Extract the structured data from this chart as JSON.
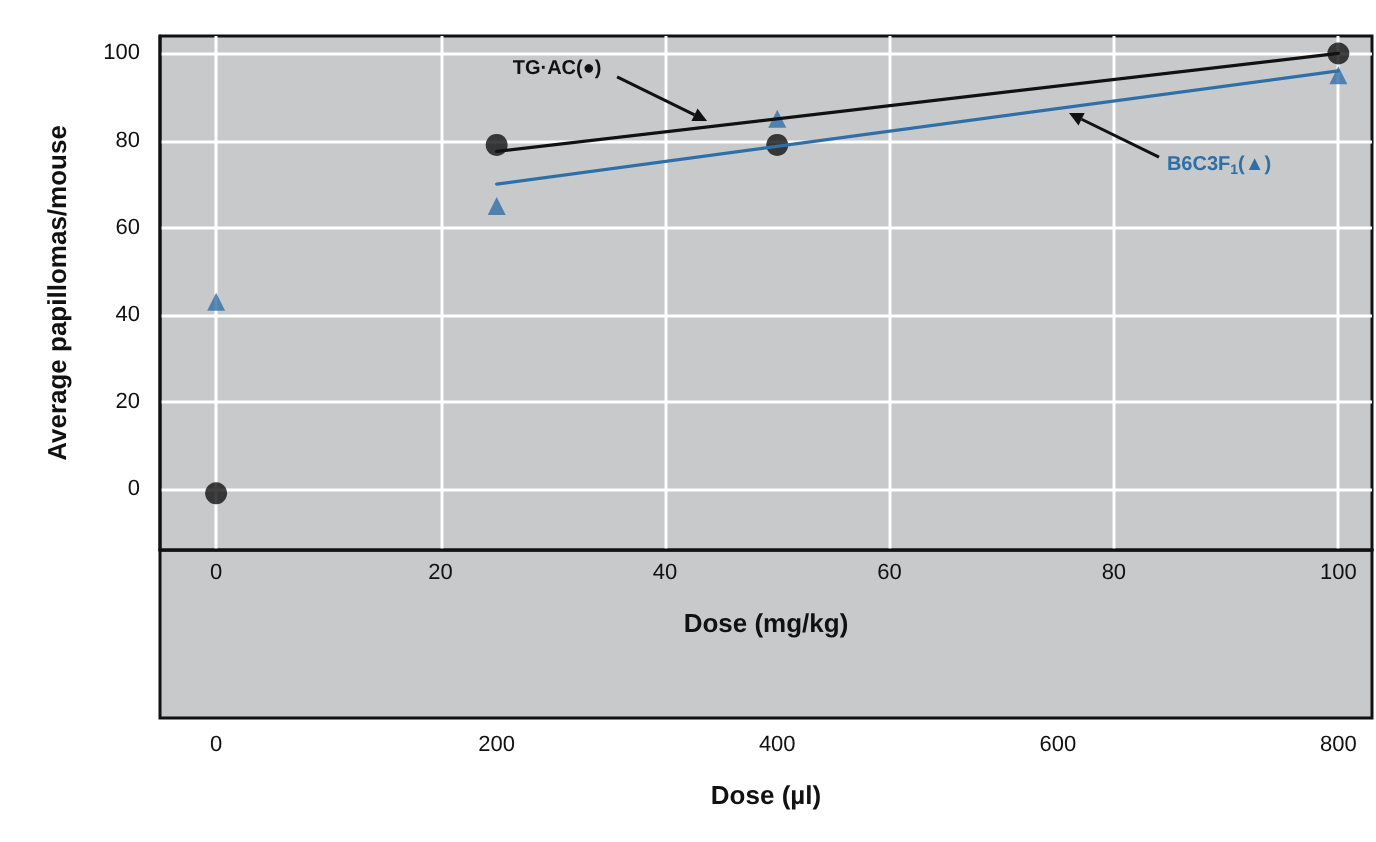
{
  "chart_data": {
    "type": "scatter",
    "xlabel": "Dose (mg/kg)",
    "x2label": "Dose (µl)",
    "ylabel": "Average papillomas/mouse",
    "xlim": [
      -5,
      103
    ],
    "xticks": [
      0,
      20,
      40,
      60,
      80,
      100
    ],
    "x2lim": [
      -40,
      824
    ],
    "x2ticks": [
      0,
      200,
      400,
      600,
      800
    ],
    "ylim": [
      -14,
      104
    ],
    "yticks": [
      0,
      20,
      40,
      60,
      80,
      100
    ],
    "grid": true,
    "legend": false,
    "series": [
      {
        "name": "TG·AC(●)",
        "marker": "circle",
        "color": "#111111",
        "x": [
          0,
          25,
          50,
          100
        ],
        "values": [
          -1,
          79,
          79,
          100
        ]
      },
      {
        "name": "B6C3F$_{1}$(▲)",
        "marker": "triangle",
        "color": "#2f6fa8",
        "x": [
          0,
          25,
          50,
          100
        ],
        "values": [
          43,
          65,
          85,
          95
        ]
      },
      {
        "type": "line",
        "marker": "none",
        "line_style": "solid",
        "color": "#111111",
        "x": [
          25,
          100
        ],
        "values": [
          77.5,
          100
        ]
      },
      {
        "type": "line",
        "marker": "none",
        "line_style": "solid",
        "color": "#2f6fa8",
        "x": [
          25,
          100
        ],
        "values": [
          70,
          96
        ]
      }
    ]
  }
}
